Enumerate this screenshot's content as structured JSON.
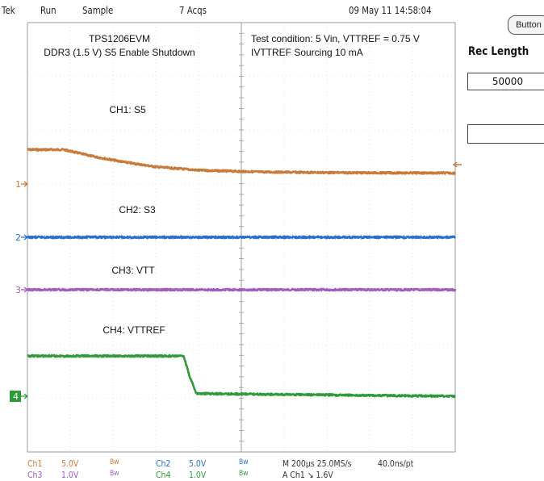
{
  "header": {
    "brand": "Tek",
    "run_state": "Run",
    "mode": "Sample",
    "acquisitions": "7 Acqs",
    "datetime": "09 May 11 14:58:04"
  },
  "side_menu": {
    "button_label": "Button",
    "rec_length_title": "Rec Length",
    "rec_length_value": "50000"
  },
  "annotations": {
    "title_line1": "TPS1206EVM",
    "title_line2": "DDR3 (1.5 V) S5 Enable Shutdown",
    "condition_line1": "Test condition: 5 Vin, VTTREF = 0.75 V",
    "condition_line2": "IVTTREF Sourcing 10 mA",
    "ch1_label": "CH1: S5",
    "ch2_label": "CH2: S3",
    "ch3_label": "CH3: VTT",
    "ch4_label": "CH4: VTTREF"
  },
  "markers": {
    "ch1": "1",
    "ch2": "2",
    "ch3": "3",
    "ch4": "4"
  },
  "status": {
    "ch1_name": "Ch1",
    "ch1_scale": "5.0V",
    "ch2_name": "Ch2",
    "ch2_scale": "5.0V",
    "ch3_name": "Ch3",
    "ch3_scale": "1.0V",
    "ch4_name": "Ch4",
    "ch4_scale": "1.0V",
    "bw": "Bw",
    "timebase": "M 200µs 25.0MS/s",
    "resolution": "40.0ns/pt",
    "trigger": "A Ch1 ↘ 1.6V"
  },
  "colors": {
    "ch1": "#c87a3a",
    "ch2": "#2a6fc9",
    "ch3": "#a25cc0",
    "ch4": "#2f9a3a",
    "grid": "#cfcfcf",
    "background": "#ffffff"
  },
  "chart_data": {
    "type": "line",
    "title": "TPS1206EVM",
    "subtitle": "DDR3 (1.5 V) S5 Enable Shutdown",
    "time_per_div_us": 200,
    "x_divisions": 10,
    "y_divisions": 8,
    "x_range_us": [
      0,
      2000
    ],
    "grid": true,
    "series": [
      {
        "name": "CH1: S5",
        "scale": "5.0V",
        "points": [
          [
            0,
            3.2
          ],
          [
            170,
            3.2
          ],
          [
            300,
            2.6
          ],
          [
            450,
            2.05
          ],
          [
            600,
            1.6
          ],
          [
            800,
            1.28
          ],
          [
            1100,
            1.12
          ],
          [
            1500,
            1.05
          ],
          [
            2000,
            1.02
          ]
        ]
      },
      {
        "name": "CH2: S3",
        "scale": "5.0V",
        "points": [
          [
            0,
            0.0
          ],
          [
            2000,
            0.0
          ]
        ]
      },
      {
        "name": "CH3: VTT",
        "scale": "1.0V",
        "points": [
          [
            0,
            0.0
          ],
          [
            2000,
            0.0
          ]
        ]
      },
      {
        "name": "CH4: VTTREF",
        "scale": "1.0V",
        "points": [
          [
            0,
            0.75
          ],
          [
            730,
            0.75
          ],
          [
            760,
            0.35
          ],
          [
            790,
            0.05
          ],
          [
            2000,
            0.0
          ]
        ]
      }
    ]
  }
}
